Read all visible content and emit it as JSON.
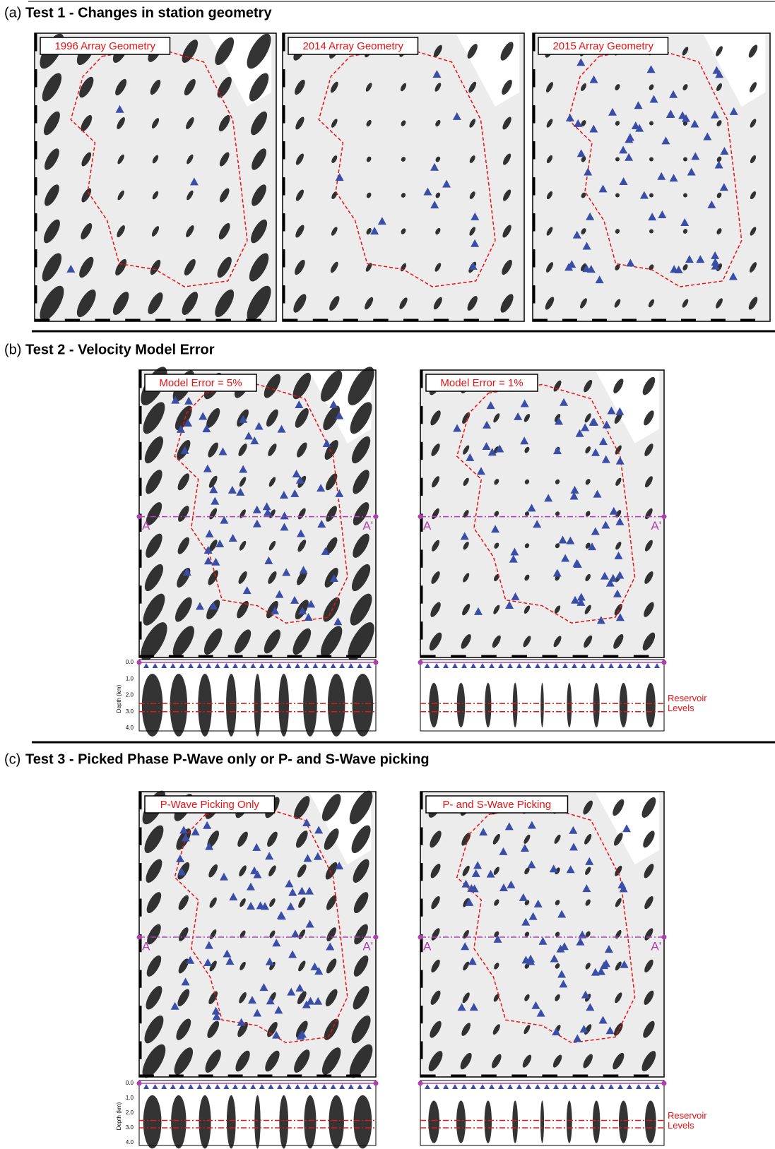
{
  "sections": [
    {
      "label": "(a)",
      "title": "Test 1 - Changes in station geometry",
      "panels": [
        {
          "label": "1996 Array Geometry"
        },
        {
          "label": "2014 Array Geometry"
        },
        {
          "label": "2015 Array Geometry"
        }
      ]
    },
    {
      "label": "(b)",
      "title": "Test 2 - Velocity Model Error",
      "panels": [
        {
          "label": "Model Error = 5%"
        },
        {
          "label": "Model Error = 1%"
        }
      ]
    },
    {
      "label": "(c)",
      "title": "Test 3 - Picked Phase P-Wave only or P- and S-Wave picking",
      "panels": [
        {
          "label": "P-Wave Picking Only"
        },
        {
          "label": "P- and S-Wave Picking"
        }
      ]
    }
  ],
  "cross_section": {
    "start": "A",
    "end": "A'"
  },
  "depth_axis": {
    "label": "Depth (km)",
    "ticks": [
      "0.0",
      "1.0",
      "2.0",
      "3.0",
      "4.0"
    ]
  },
  "reservoir_label": [
    "Reservoir",
    "Levels"
  ]
}
